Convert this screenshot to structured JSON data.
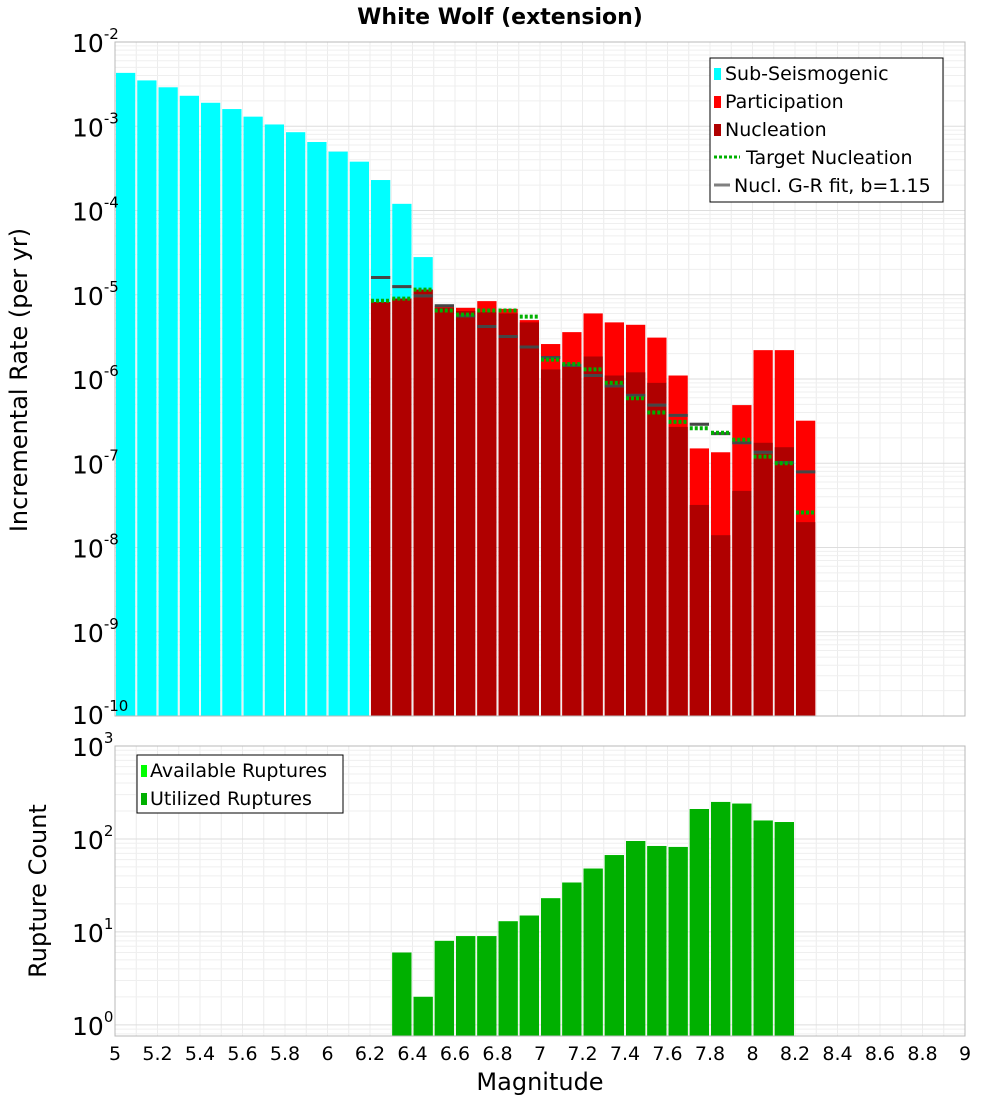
{
  "chart_data": [
    {
      "type": "bar",
      "title": "White Wolf (extension)",
      "xlabel": "",
      "ylabel": "Incremental Rate (per yr)",
      "xlim": [
        5,
        9
      ],
      "yscale": "log",
      "ylim_exp": [
        -10,
        -2
      ],
      "y_tick_exponents": [
        -10,
        -9,
        -8,
        -7,
        -6,
        -5,
        -4,
        -3,
        -2
      ],
      "bin_width": 0.1,
      "legend_position": "top-right",
      "legend": [
        {
          "label": "Sub-Seismogenic",
          "style": "bar",
          "color": "#00ffff"
        },
        {
          "label": "Participation",
          "style": "bar",
          "color": "#ff0000"
        },
        {
          "label": "Nucleation",
          "style": "bar",
          "color": "#b00000"
        },
        {
          "label": "Target Nucleation",
          "style": "dotted-line",
          "color": "#00b000"
        },
        {
          "label": "Nucl. G-R fit, b=1.15",
          "style": "line",
          "color": "#808080"
        }
      ],
      "series": [
        {
          "name": "Sub-Seismogenic",
          "color": "#00ffff",
          "x": [
            5.05,
            5.15,
            5.25,
            5.35,
            5.45,
            5.55,
            5.65,
            5.75,
            5.85,
            5.95,
            6.05,
            6.15,
            6.25,
            6.35,
            6.45
          ],
          "values": [
            0.0043,
            0.0035,
            0.0029,
            0.0023,
            0.0019,
            0.0016,
            0.0013,
            0.00105,
            0.00085,
            0.00065,
            0.0005,
            0.00038,
            0.00023,
            0.00012,
            2.8e-05
          ]
        },
        {
          "name": "Participation",
          "color": "#ff0000",
          "x": [
            6.25,
            6.35,
            6.45,
            6.55,
            6.65,
            6.75,
            6.85,
            6.95,
            7.05,
            7.15,
            7.25,
            7.35,
            7.45,
            7.55,
            7.65,
            7.75,
            7.85,
            7.95,
            8.05,
            8.15,
            8.25
          ],
          "values": [
            8.2e-06,
            9e-06,
            1.15e-05,
            7.3e-06,
            7e-06,
            8.4e-06,
            6.8e-06,
            5e-06,
            2.6e-06,
            3.6e-06,
            6e-06,
            4.7e-06,
            4.4e-06,
            3.1e-06,
            1.1e-06,
            1.5e-07,
            1.35e-07,
            4.9e-07,
            2.2e-06,
            2.2e-06,
            3.2e-07
          ]
        },
        {
          "name": "Nucleation",
          "color": "#b00000",
          "x": [
            6.25,
            6.35,
            6.45,
            6.55,
            6.65,
            6.75,
            6.85,
            6.95,
            7.05,
            7.15,
            7.25,
            7.35,
            7.45,
            7.55,
            7.65,
            7.75,
            7.85,
            7.95,
            8.05,
            8.15,
            8.25
          ],
          "values": [
            8.2e-06,
            9e-06,
            1.15e-05,
            7e-06,
            6.4e-06,
            6.2e-06,
            6e-06,
            4.7e-06,
            1.3e-06,
            1.5e-06,
            1.85e-06,
            1.1e-06,
            1.2e-06,
            9e-07,
            2.7e-07,
            3.2e-08,
            1.4e-08,
            4.7e-08,
            1.75e-07,
            1.55e-07,
            2e-08
          ]
        },
        {
          "name": "Target Nucleation",
          "color": "#00b000",
          "x": [
            6.25,
            6.35,
            6.45,
            6.55,
            6.65,
            6.75,
            6.85,
            6.95,
            7.05,
            7.15,
            7.25,
            7.35,
            7.45,
            7.55,
            7.65,
            7.75,
            7.85,
            7.95,
            8.05,
            8.15,
            8.25
          ],
          "values": [
            8.5e-06,
            9e-06,
            1.15e-05,
            6.5e-06,
            5.8e-06,
            6.5e-06,
            6.5e-06,
            5.5e-06,
            1.7e-06,
            1.5e-06,
            1.3e-06,
            9e-07,
            5.9e-07,
            4e-07,
            3.1e-07,
            2.6e-07,
            2.3e-07,
            1.9e-07,
            1.2e-07,
            1e-07,
            2.6e-08
          ]
        },
        {
          "name": "Nucl. G-R fit, b=1.15",
          "color": "#808080",
          "x": [
            6.25,
            6.35,
            6.45,
            6.55,
            6.65,
            6.75,
            6.85,
            6.95,
            7.05,
            7.15,
            7.25,
            7.35,
            7.45,
            7.55,
            7.65,
            7.75,
            7.85,
            7.95,
            8.05,
            8.15,
            8.25
          ],
          "values": [
            1.6e-05,
            1.25e-05,
            9.7e-06,
            7.4e-06,
            5.6e-06,
            4.2e-06,
            3.2e-06,
            2.4e-06,
            1.8e-06,
            1.45e-06,
            1.1e-06,
            8.3e-07,
            6.4e-07,
            4.9e-07,
            3.7e-07,
            2.9e-07,
            2.25e-07,
            1.75e-07,
            1.35e-07,
            1.02e-07,
            7.9e-08
          ]
        }
      ]
    },
    {
      "type": "bar",
      "title": "",
      "xlabel": "Magnitude",
      "ylabel": "Rupture Count",
      "xlim": [
        5,
        9
      ],
      "x_ticks": [
        "5",
        "5.2",
        "5.4",
        "5.6",
        "5.8",
        "6",
        "6.2",
        "6.4",
        "6.6",
        "6.8",
        "7",
        "7.2",
        "7.4",
        "7.6",
        "7.8",
        "8",
        "8.2",
        "8.4",
        "8.6",
        "8.8",
        "9"
      ],
      "yscale": "log",
      "ylim_exp": [
        -0.12,
        3
      ],
      "y_tick_exponents": [
        0,
        1,
        2,
        3
      ],
      "bin_width": 0.1,
      "legend_position": "top-left",
      "legend": [
        {
          "label": "Available Ruptures",
          "style": "bar",
          "color": "#00ff00"
        },
        {
          "label": "Utilized Ruptures",
          "style": "bar",
          "color": "#00b000"
        }
      ],
      "series": [
        {
          "name": "Available Ruptures",
          "color": "#00ff00",
          "x": [
            6.35,
            6.45,
            6.55,
            6.65,
            6.75,
            6.85,
            6.95,
            7.05,
            7.15,
            7.25,
            7.35,
            7.45,
            7.55,
            7.65,
            7.75,
            7.85,
            7.95,
            8.05,
            8.15
          ],
          "values": [
            6,
            2,
            8,
            9,
            9,
            13,
            15,
            23,
            34,
            48,
            67,
            95,
            84,
            82,
            210,
            250,
            240,
            158,
            152
          ]
        },
        {
          "name": "Utilized Ruptures",
          "color": "#00b000",
          "x": [
            6.35,
            6.45,
            6.55,
            6.65,
            6.75,
            6.85,
            6.95,
            7.05,
            7.15,
            7.25,
            7.35,
            7.45,
            7.55,
            7.65,
            7.75,
            7.85,
            7.95,
            8.05,
            8.15
          ],
          "values": [
            6,
            2,
            8,
            9,
            9,
            13,
            15,
            23,
            34,
            48,
            67,
            95,
            84,
            82,
            210,
            250,
            240,
            158,
            152
          ]
        }
      ]
    }
  ]
}
